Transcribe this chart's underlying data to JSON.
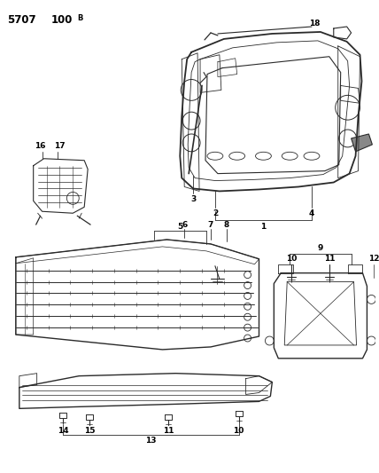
{
  "bg_color": "#ffffff",
  "line_color": "#2a2a2a",
  "figsize": [
    4.28,
    5.33
  ],
  "dpi": 100
}
